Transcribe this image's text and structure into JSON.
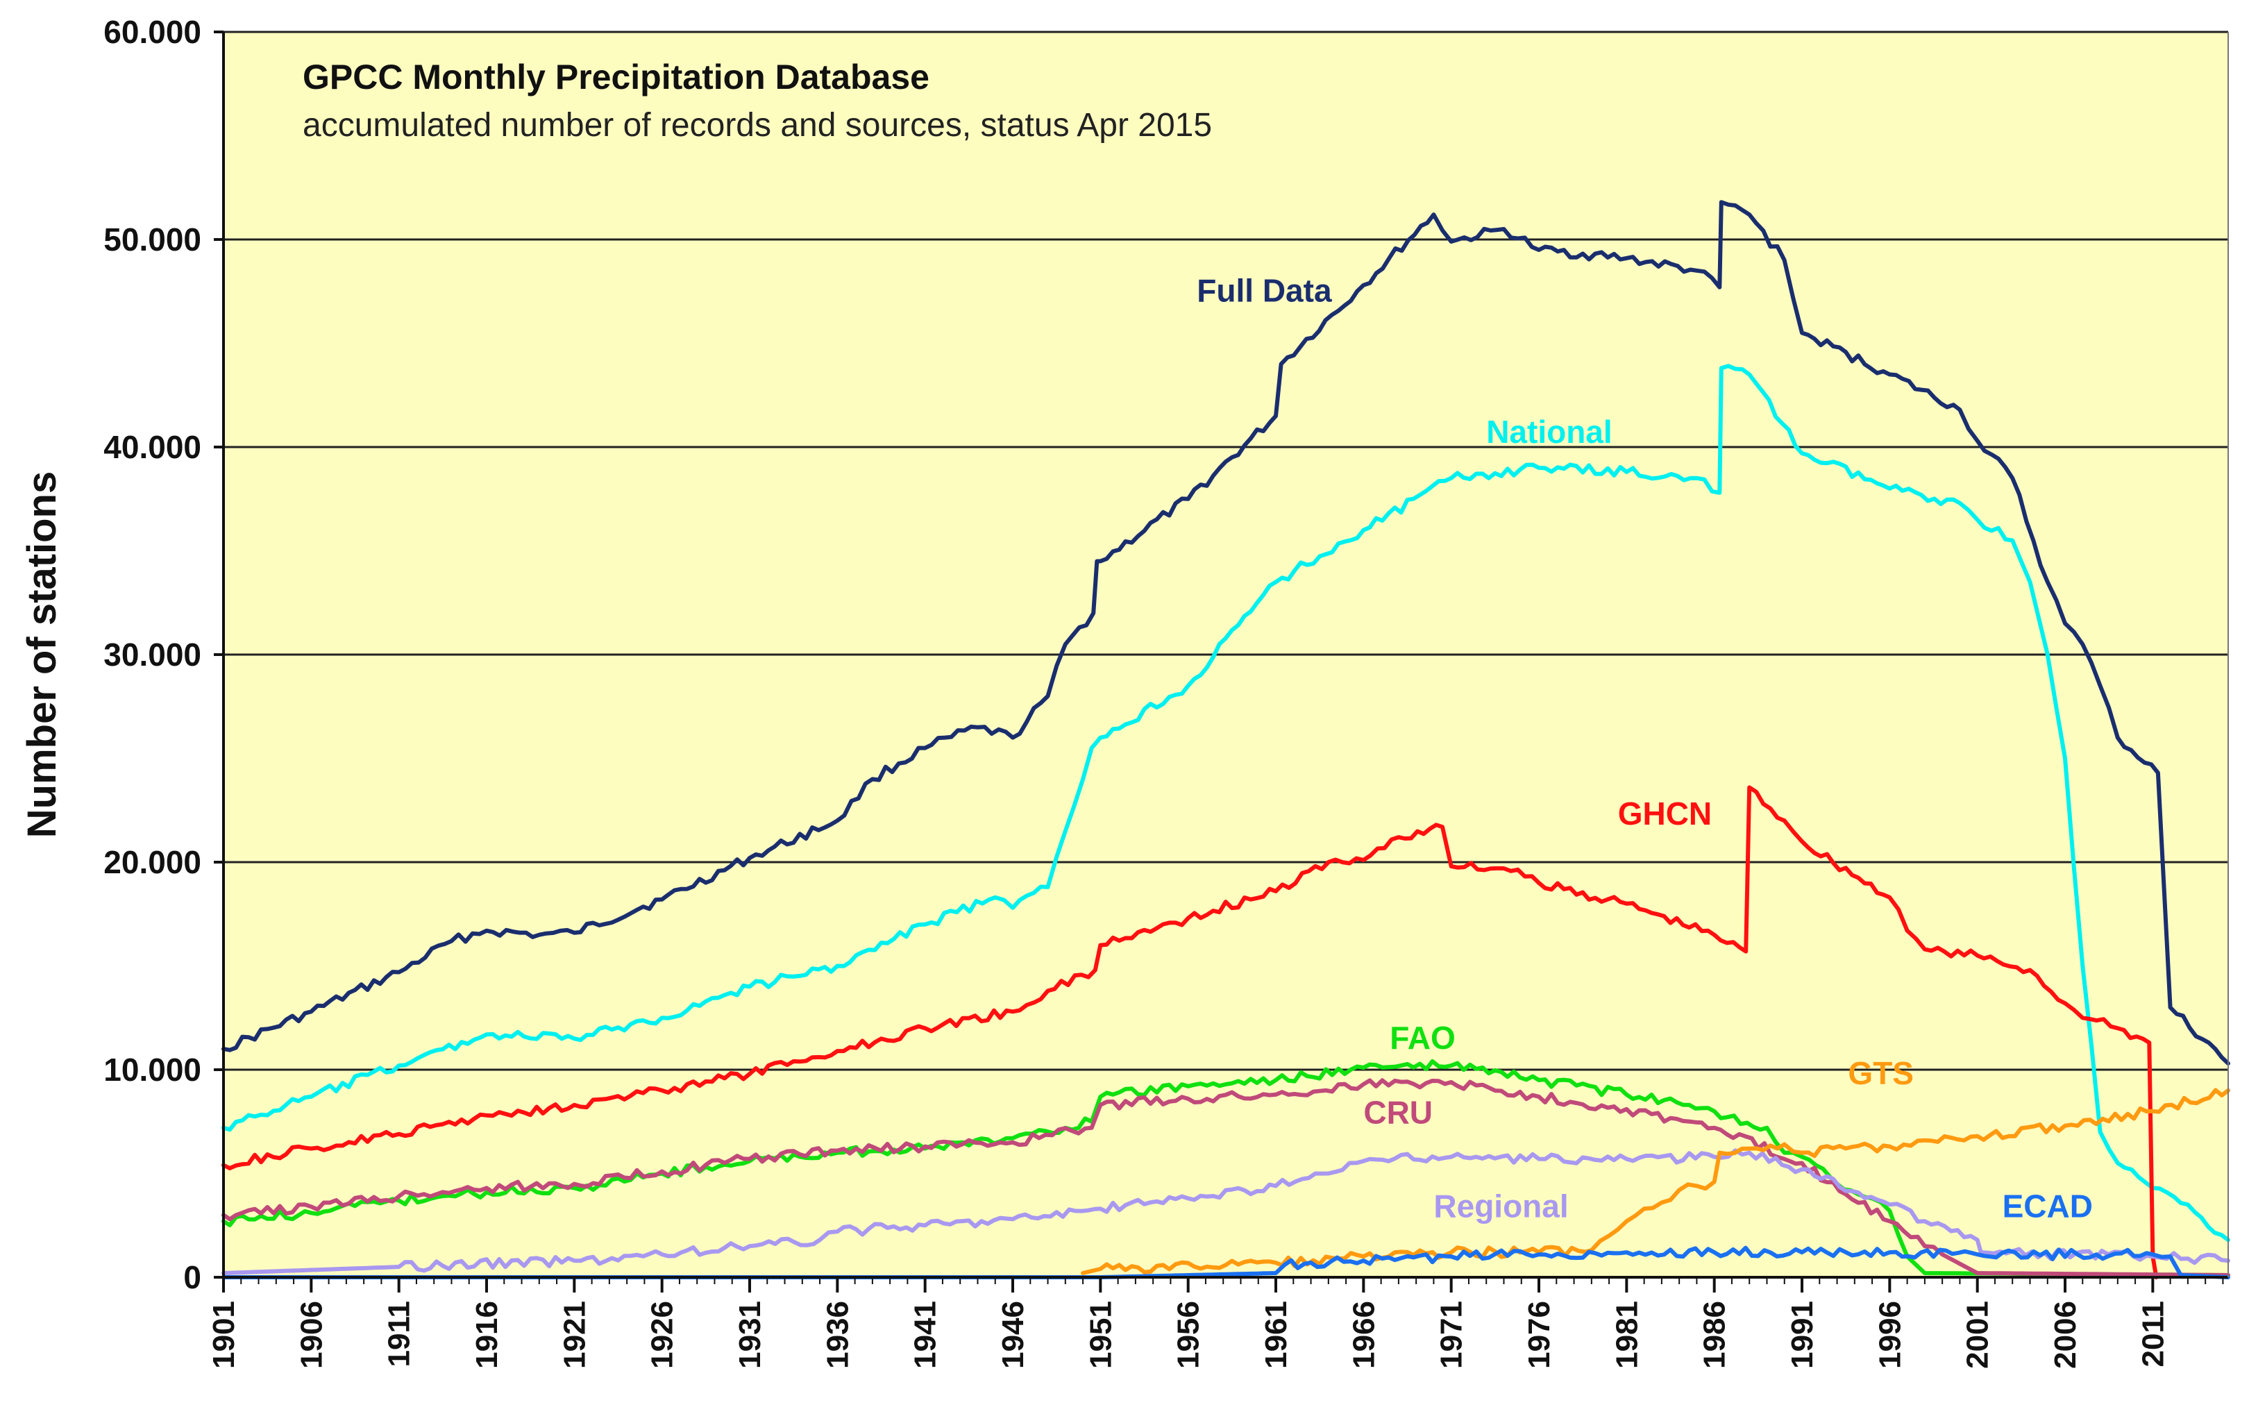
{
  "chart_data": {
    "type": "line",
    "title": "GPCC Monthly Precipitation Database",
    "subtitle": "accumulated number of records and sources, status Apr 2015",
    "xlabel": "",
    "ylabel": "Number of stations",
    "xlim": [
      1901,
      2015.3
    ],
    "ylim": [
      0,
      60000
    ],
    "grid": true,
    "colors": {
      "plot_background": "#fdfdc0",
      "grid": "#222222",
      "axis": "#111111"
    },
    "x_ticks": [
      1901,
      1906,
      1911,
      1916,
      1921,
      1926,
      1931,
      1936,
      1941,
      1946,
      1951,
      1956,
      1961,
      1966,
      1971,
      1976,
      1981,
      1986,
      1991,
      1996,
      2001,
      2006,
      2011
    ],
    "x_tick_labels": [
      "1901",
      "1906",
      "1911",
      "1916",
      "1921",
      "1926",
      "1931",
      "1936",
      "1941",
      "1946",
      "1951",
      "1956",
      "1961",
      "1966",
      "1971",
      "1976",
      "1981",
      "1986",
      "1991",
      "1996",
      "2001",
      "2006",
      "2011"
    ],
    "y_ticks": [
      0,
      10000,
      20000,
      30000,
      40000,
      50000,
      60000
    ],
    "y_tick_labels": [
      "0",
      "10.000",
      "20.000",
      "30.000",
      "40.000",
      "50.000",
      "60.000"
    ],
    "series": [
      {
        "name": "Full Data",
        "color": "#1a2e6e",
        "label_year": 1956.5,
        "label_value": 47000,
        "label_anchor": "start",
        "points": [
          [
            1901,
            11000
          ],
          [
            1906,
            12800
          ],
          [
            1911,
            14700
          ],
          [
            1914,
            16200
          ],
          [
            1916,
            16700
          ],
          [
            1919,
            16500
          ],
          [
            1921,
            16600
          ],
          [
            1926,
            18200
          ],
          [
            1931,
            20200
          ],
          [
            1936,
            22000
          ],
          [
            1938,
            24000
          ],
          [
            1941,
            25500
          ],
          [
            1944,
            26500
          ],
          [
            1946,
            26000
          ],
          [
            1948,
            28000
          ],
          [
            1949,
            30500
          ],
          [
            1950.6,
            32000
          ],
          [
            1950.8,
            34500
          ],
          [
            1951,
            34500
          ],
          [
            1956,
            37500
          ],
          [
            1961,
            41500
          ],
          [
            1961.3,
            44000
          ],
          [
            1966,
            47800
          ],
          [
            1970,
            51200
          ],
          [
            1971,
            49900
          ],
          [
            1974,
            50500
          ],
          [
            1976,
            49500
          ],
          [
            1981,
            49100
          ],
          [
            1985,
            48500
          ],
          [
            1986.3,
            47700
          ],
          [
            1986.4,
            51800
          ],
          [
            1988,
            51200
          ],
          [
            1990,
            49000
          ],
          [
            1991,
            45500
          ],
          [
            1996,
            43500
          ],
          [
            2000,
            41800
          ],
          [
            2001,
            40300
          ],
          [
            2003,
            38500
          ],
          [
            2005,
            33500
          ],
          [
            2006,
            31500
          ],
          [
            2007,
            30500
          ],
          [
            2008,
            28500
          ],
          [
            2009,
            26000
          ],
          [
            2011.3,
            24300
          ],
          [
            2012,
            13000
          ],
          [
            2015.3,
            10300
          ]
        ]
      },
      {
        "name": "National",
        "color": "#00f0f0",
        "label_year": 1973,
        "label_value": 40200,
        "label_anchor": "start",
        "points": [
          [
            1901,
            7200
          ],
          [
            1906,
            8700
          ],
          [
            1911,
            10200
          ],
          [
            1916,
            11700
          ],
          [
            1921,
            11500
          ],
          [
            1926,
            12500
          ],
          [
            1931,
            14000
          ],
          [
            1936,
            15000
          ],
          [
            1941,
            17000
          ],
          [
            1945,
            18300
          ],
          [
            1946,
            17800
          ],
          [
            1948,
            18800
          ],
          [
            1949,
            21500
          ],
          [
            1950,
            24000
          ],
          [
            1950.5,
            25500
          ],
          [
            1951,
            26000
          ],
          [
            1956,
            28500
          ],
          [
            1961,
            33500
          ],
          [
            1966,
            36000
          ],
          [
            1971,
            38500
          ],
          [
            1976,
            39000
          ],
          [
            1981,
            38800
          ],
          [
            1985,
            38500
          ],
          [
            1986.3,
            37800
          ],
          [
            1986.4,
            43800
          ],
          [
            1988,
            43500
          ],
          [
            1991,
            39700
          ],
          [
            1996,
            38000
          ],
          [
            2000,
            37300
          ],
          [
            2001,
            36500
          ],
          [
            2003,
            35500
          ],
          [
            2004,
            33500
          ],
          [
            2005,
            30000
          ],
          [
            2006,
            25000
          ],
          [
            2007,
            15000
          ],
          [
            2008,
            7000
          ],
          [
            2009,
            5500
          ],
          [
            2011,
            4300
          ],
          [
            2013,
            3500
          ],
          [
            2015.3,
            1800
          ]
        ]
      },
      {
        "name": "GHCN",
        "color": "#ff1010",
        "label_year": 1980.5,
        "label_value": 21800,
        "label_anchor": "start",
        "points": [
          [
            1901,
            5400
          ],
          [
            1906,
            6200
          ],
          [
            1911,
            6900
          ],
          [
            1916,
            7800
          ],
          [
            1921,
            8300
          ],
          [
            1926,
            9000
          ],
          [
            1931,
            9800
          ],
          [
            1936,
            10900
          ],
          [
            1941,
            12000
          ],
          [
            1946,
            12800
          ],
          [
            1948,
            13800
          ],
          [
            1950.7,
            14800
          ],
          [
            1951,
            16000
          ],
          [
            1956,
            17300
          ],
          [
            1961,
            18600
          ],
          [
            1964,
            20000
          ],
          [
            1966,
            20100
          ],
          [
            1968,
            21200
          ],
          [
            1970.5,
            21700
          ],
          [
            1971,
            19800
          ],
          [
            1974,
            19700
          ],
          [
            1976,
            19000
          ],
          [
            1981,
            18000
          ],
          [
            1986,
            16500
          ],
          [
            1987.8,
            15700
          ],
          [
            1988,
            23600
          ],
          [
            1990,
            22000
          ],
          [
            1991,
            21000
          ],
          [
            1996,
            18300
          ],
          [
            1997,
            16700
          ],
          [
            1998,
            15800
          ],
          [
            2001,
            15500
          ],
          [
            2004,
            14800
          ],
          [
            2006,
            13200
          ],
          [
            2007,
            12500
          ],
          [
            2009,
            12000
          ],
          [
            2010.8,
            11300
          ],
          [
            2011,
            1000
          ],
          [
            2011.2,
            0
          ]
        ]
      },
      {
        "name": "FAO",
        "color": "#10e010",
        "label_year": 1967.5,
        "label_value": 11000,
        "label_anchor": "start",
        "points": [
          [
            1901,
            2700
          ],
          [
            1906,
            3100
          ],
          [
            1911,
            3700
          ],
          [
            1916,
            4100
          ],
          [
            1921,
            4300
          ],
          [
            1926,
            5000
          ],
          [
            1931,
            5600
          ],
          [
            1936,
            6000
          ],
          [
            1941,
            6200
          ],
          [
            1946,
            6700
          ],
          [
            1950.5,
            7500
          ],
          [
            1951,
            8700
          ],
          [
            1956,
            9200
          ],
          [
            1961,
            9500
          ],
          [
            1966,
            10100
          ],
          [
            1971,
            10200
          ],
          [
            1976,
            9500
          ],
          [
            1981,
            8800
          ],
          [
            1986,
            8000
          ],
          [
            1989,
            7200
          ],
          [
            1990,
            6000
          ],
          [
            1991,
            5800
          ],
          [
            1993,
            4500
          ],
          [
            1995,
            3800
          ],
          [
            1996,
            3200
          ],
          [
            1997,
            1000
          ],
          [
            1998,
            200
          ],
          [
            2015.3,
            100
          ]
        ]
      },
      {
        "name": "CRU",
        "color": "#c04a7a",
        "label_year": 1966,
        "label_value": 7400,
        "label_anchor": "start",
        "points": [
          [
            1901,
            3000
          ],
          [
            1906,
            3400
          ],
          [
            1911,
            3900
          ],
          [
            1916,
            4300
          ],
          [
            1921,
            4500
          ],
          [
            1926,
            5100
          ],
          [
            1931,
            5700
          ],
          [
            1936,
            6100
          ],
          [
            1941,
            6300
          ],
          [
            1946,
            6500
          ],
          [
            1950.5,
            7200
          ],
          [
            1951,
            8300
          ],
          [
            1956,
            8600
          ],
          [
            1961,
            8800
          ],
          [
            1966,
            9300
          ],
          [
            1971,
            9400
          ],
          [
            1976,
            8700
          ],
          [
            1981,
            8100
          ],
          [
            1986,
            7200
          ],
          [
            1991,
            5500
          ],
          [
            1996,
            2700
          ],
          [
            1998,
            1500
          ],
          [
            1999,
            1100
          ],
          [
            2001,
            200
          ],
          [
            2015.3,
            100
          ]
        ]
      },
      {
        "name": "Regional",
        "color": "#a898f0",
        "label_year": 1970,
        "label_value": 2900,
        "label_anchor": "start",
        "points": [
          [
            1901,
            200
          ],
          [
            1911,
            500
          ],
          [
            1921,
            800
          ],
          [
            1926,
            1100
          ],
          [
            1931,
            1500
          ],
          [
            1935,
            1800
          ],
          [
            1936,
            2200
          ],
          [
            1941,
            2500
          ],
          [
            1946,
            2800
          ],
          [
            1951,
            3300
          ],
          [
            1956,
            3800
          ],
          [
            1961,
            4400
          ],
          [
            1964,
            5000
          ],
          [
            1966,
            5600
          ],
          [
            1971,
            5800
          ],
          [
            1976,
            5700
          ],
          [
            1981,
            5700
          ],
          [
            1986,
            5800
          ],
          [
            1988,
            6000
          ],
          [
            1991,
            5200
          ],
          [
            1996,
            3500
          ],
          [
            1998,
            2700
          ],
          [
            2001,
            1800
          ],
          [
            2001.2,
            1200
          ],
          [
            2011,
            1000
          ],
          [
            2013,
            900
          ],
          [
            2015.3,
            800
          ]
        ]
      },
      {
        "name": "GTS",
        "color": "#ff9a10",
        "label_year": 1995.5,
        "label_value": 9300,
        "label_anchor": "middle",
        "points": [
          [
            1950,
            200
          ],
          [
            1951,
            400
          ],
          [
            1961,
            700
          ],
          [
            1966,
            1000
          ],
          [
            1971,
            1200
          ],
          [
            1976,
            1200
          ],
          [
            1979,
            1300
          ],
          [
            1980,
            2000
          ],
          [
            1981,
            2700
          ],
          [
            1982,
            3300
          ],
          [
            1983,
            3600
          ],
          [
            1984,
            4200
          ],
          [
            1985,
            4400
          ],
          [
            1986,
            4600
          ],
          [
            1986.3,
            6000
          ],
          [
            1988,
            6200
          ],
          [
            1990,
            6400
          ],
          [
            1991,
            6000
          ],
          [
            1996,
            6300
          ],
          [
            1998,
            6600
          ],
          [
            2001,
            6800
          ],
          [
            2006,
            7300
          ],
          [
            2011,
            8000
          ],
          [
            2015.3,
            9000
          ]
        ]
      },
      {
        "name": "ECAD",
        "color": "#1a70f0",
        "label_year": 2005,
        "label_value": 2900,
        "label_anchor": "middle",
        "points": [
          [
            1901,
            0
          ],
          [
            1951,
            0
          ],
          [
            1961,
            200
          ],
          [
            1961.5,
            600
          ],
          [
            1966,
            800
          ],
          [
            1971,
            1000
          ],
          [
            1976,
            1100
          ],
          [
            1981,
            1200
          ],
          [
            1986,
            1200
          ],
          [
            1991,
            1200
          ],
          [
            1996,
            1200
          ],
          [
            2001,
            1100
          ],
          [
            2011,
            1100
          ],
          [
            2012,
            1000
          ],
          [
            2012.6,
            100
          ],
          [
            2015.3,
            0
          ]
        ]
      }
    ]
  }
}
